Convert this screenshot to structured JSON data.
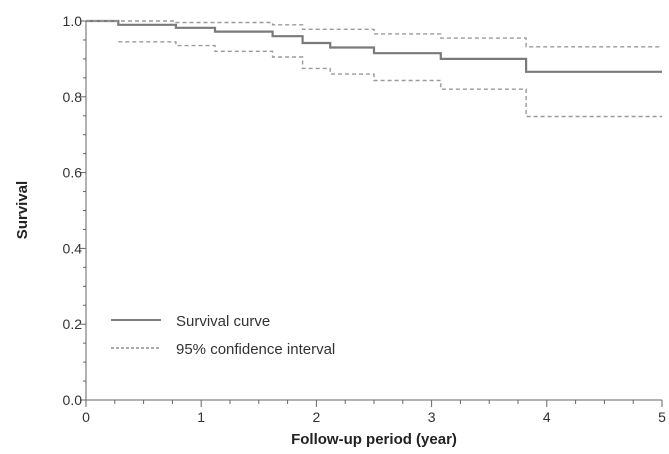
{
  "chart_data": {
    "type": "line",
    "xlabel": "Follow-up period (year)",
    "ylabel": "Survival",
    "xlim": [
      0,
      5
    ],
    "ylim": [
      0.0,
      1.0
    ],
    "x_ticks": [
      "0",
      "1",
      "2",
      "3",
      "4",
      "5"
    ],
    "y_ticks": [
      "0.0",
      "0.2",
      "0.4",
      "0.6",
      "0.8",
      "1.0"
    ],
    "x_minor_step": 0.25,
    "y_minor_step": 0.05,
    "grid": false,
    "legend_position": "bottom-left",
    "step": true,
    "series": [
      {
        "name": "Survival curve",
        "style": "solid",
        "color": "#7a7a7a",
        "x": [
          0,
          0.28,
          0.78,
          1.12,
          1.62,
          1.88,
          2.12,
          2.5,
          3.08,
          3.82,
          5.0
        ],
        "y": [
          1.0,
          0.99,
          0.982,
          0.972,
          0.96,
          0.942,
          0.93,
          0.915,
          0.9,
          0.866,
          0.866
        ]
      },
      {
        "name": "95% confidence interval",
        "style": "dashed",
        "color": "#9a9a9a",
        "x": [
          0,
          0.78,
          1.62,
          1.88,
          2.5,
          3.08,
          3.82,
          5.0
        ],
        "y": [
          1.0,
          0.996,
          0.99,
          0.978,
          0.966,
          0.955,
          0.932,
          0.932
        ]
      },
      {
        "name": "95% confidence interval",
        "style": "dashed",
        "color": "#9a9a9a",
        "x": [
          0.28,
          0.78,
          1.12,
          1.62,
          1.88,
          2.12,
          2.5,
          3.08,
          3.82,
          5.0
        ],
        "y": [
          0.945,
          0.935,
          0.92,
          0.905,
          0.875,
          0.86,
          0.843,
          0.82,
          0.748,
          0.748
        ]
      }
    ],
    "legend": [
      {
        "label": "Survival curve",
        "style": "solid"
      },
      {
        "label": "95% confidence interval",
        "style": "dashed"
      }
    ]
  }
}
